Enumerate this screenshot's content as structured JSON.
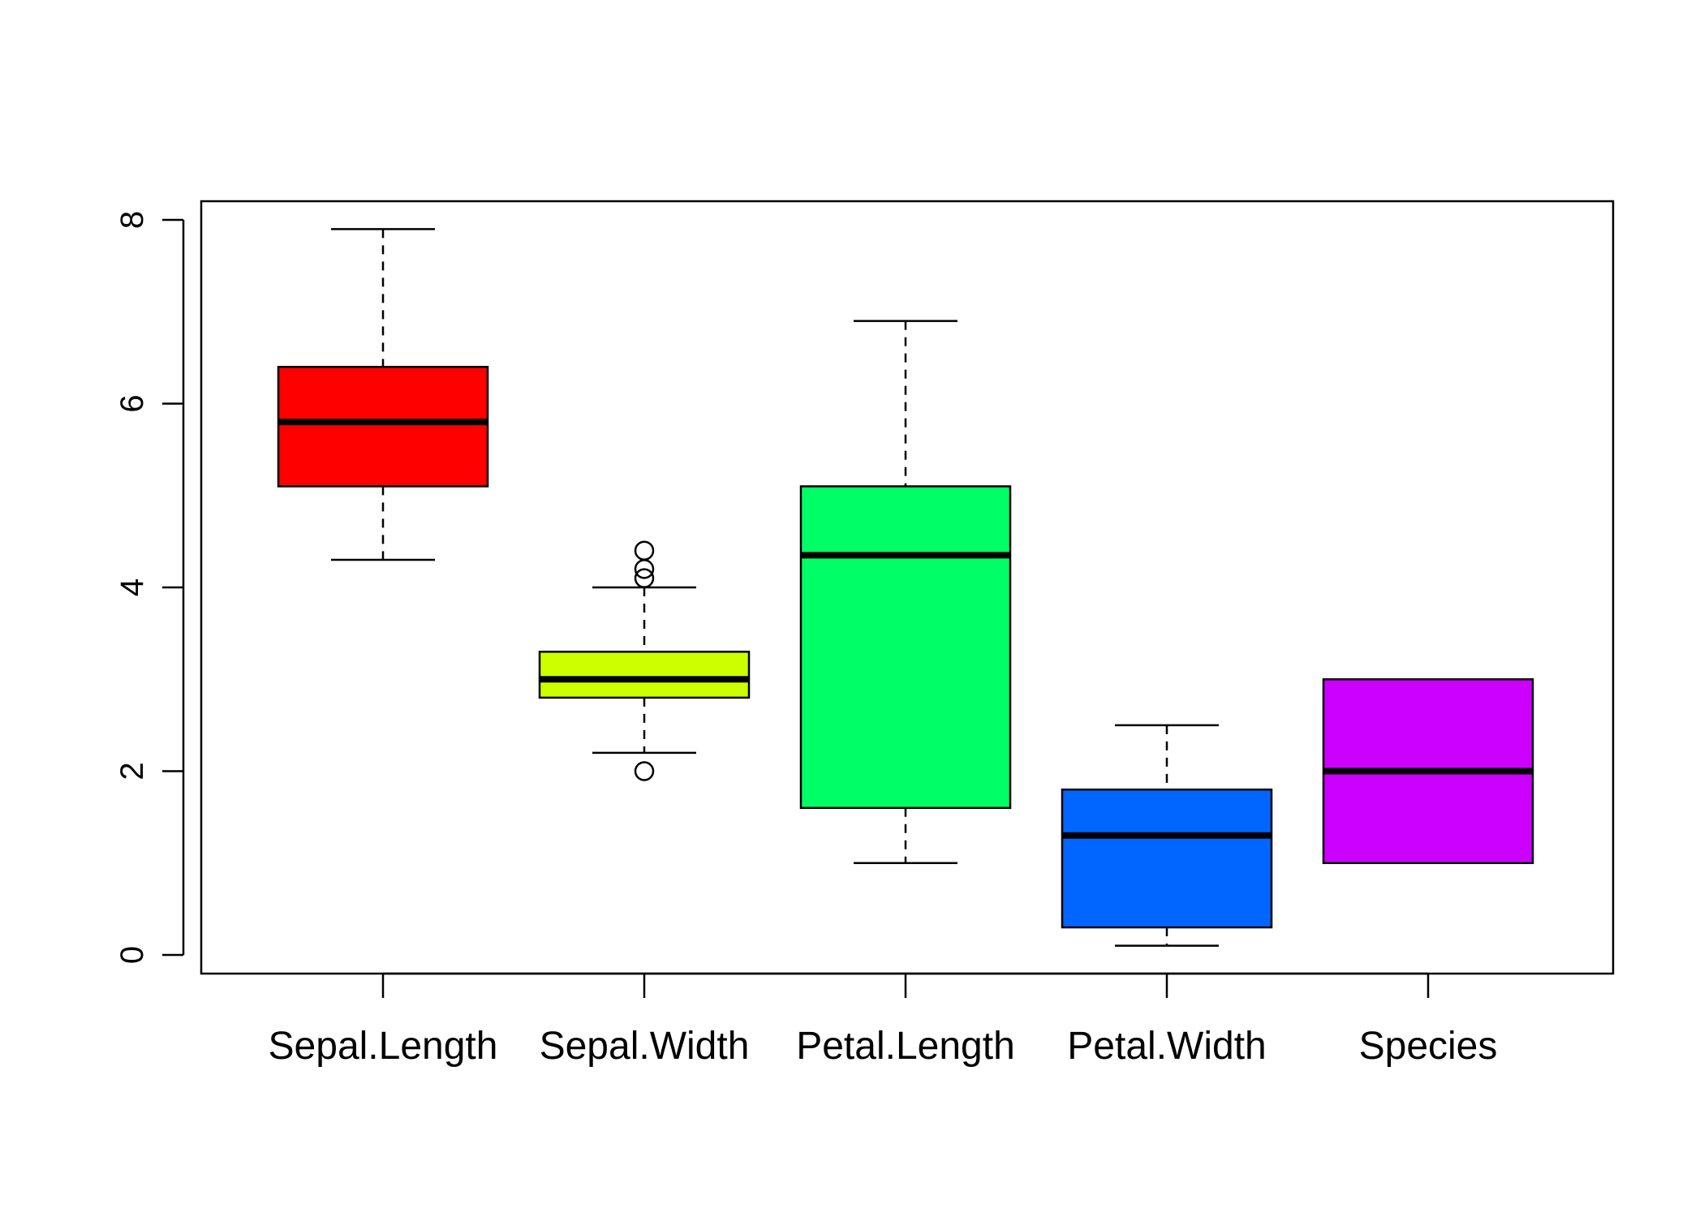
{
  "chart_data": {
    "type": "box",
    "title": "",
    "xlabel": "",
    "ylabel": "",
    "ylim": [
      0,
      8
    ],
    "yticks": [
      "0",
      "2",
      "4",
      "6",
      "8"
    ],
    "categories": [
      "Sepal.Length",
      "Sepal.Width",
      "Petal.Length",
      "Petal.Width",
      "Species"
    ],
    "series": [
      {
        "category": "Sepal.Length",
        "color": "#FF0000",
        "whisker_low": 4.3,
        "q1": 5.1,
        "median": 5.8,
        "q3": 6.4,
        "whisker_high": 7.9,
        "outliers": []
      },
      {
        "category": "Sepal.Width",
        "color": "#CCFF00",
        "whisker_low": 2.2,
        "q1": 2.8,
        "median": 3.0,
        "q3": 3.3,
        "whisker_high": 4.0,
        "outliers": [
          2.0,
          4.1,
          4.2,
          4.4
        ]
      },
      {
        "category": "Petal.Length",
        "color": "#00FF66",
        "whisker_low": 1.0,
        "q1": 1.6,
        "median": 4.35,
        "q3": 5.1,
        "whisker_high": 6.9,
        "outliers": []
      },
      {
        "category": "Petal.Width",
        "color": "#0066FF",
        "whisker_low": 0.1,
        "q1": 0.3,
        "median": 1.3,
        "q3": 1.8,
        "whisker_high": 2.5,
        "outliers": []
      },
      {
        "category": "Species",
        "color": "#CC00FF",
        "whisker_low": 1.0,
        "q1": 1.0,
        "median": 2.0,
        "q3": 3.0,
        "whisker_high": 3.0,
        "outliers": []
      }
    ],
    "grid": false,
    "legend": "none"
  }
}
